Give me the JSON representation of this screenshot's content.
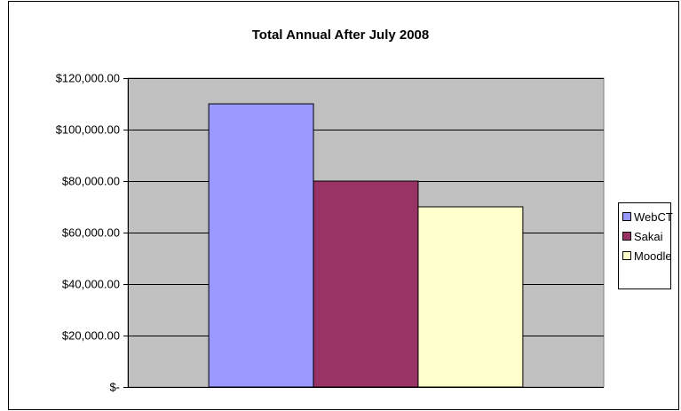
{
  "chart_data": {
    "type": "bar",
    "title": "Total Annual After July 2008",
    "categories": [
      "WebCT",
      "Sakai",
      "Moodle"
    ],
    "values": [
      110000,
      80000,
      70000
    ],
    "colors": [
      "#9999ff",
      "#993366",
      "#ffffcc"
    ],
    "ylim": [
      0,
      120000
    ],
    "yticks": [
      0,
      20000,
      40000,
      60000,
      80000,
      100000,
      120000
    ],
    "ytick_labels": [
      "$-",
      "$20,000.00",
      "$40,000.00",
      "$60,000.00",
      "$80,000.00",
      "$100,000.00",
      "$120,000.00"
    ],
    "grid": true,
    "plot_background": "#c0c0c0",
    "legend_position": "right",
    "legend": [
      {
        "label": "WebCT",
        "color": "#9999ff"
      },
      {
        "label": "Sakai",
        "color": "#993366"
      },
      {
        "label": "Moodle",
        "color": "#ffffcc"
      }
    ]
  }
}
